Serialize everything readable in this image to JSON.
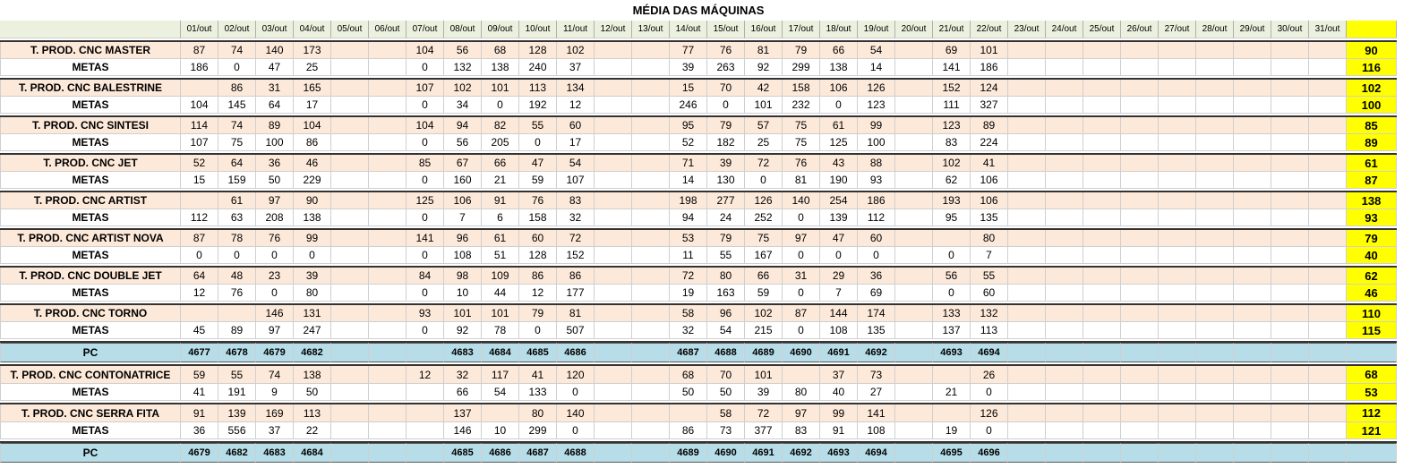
{
  "title": "MÉDIA DAS MÁQUINAS",
  "days": [
    "01/out",
    "02/out",
    "03/out",
    "04/out",
    "05/out",
    "06/out",
    "07/out",
    "08/out",
    "09/out",
    "10/out",
    "11/out",
    "12/out",
    "13/out",
    "14/out",
    "15/out",
    "16/out",
    "17/out",
    "18/out",
    "19/out",
    "20/out",
    "21/out",
    "22/out",
    "23/out",
    "24/out",
    "25/out",
    "26/out",
    "27/out",
    "28/out",
    "29/out",
    "30/out",
    "31/out"
  ],
  "colors": {
    "prod_row": "#fde9d9",
    "header": "#ebf1de",
    "pc_row": "#b7dee8",
    "total": "#ffff00"
  },
  "groups1": [
    {
      "prod_label": "T. PROD. CNC MASTER",
      "prod": [
        "87",
        "74",
        "140",
        "173",
        "",
        "",
        "104",
        "56",
        "68",
        "128",
        "102",
        "",
        "",
        "77",
        "76",
        "81",
        "79",
        "66",
        "54",
        "",
        "69",
        "101",
        "",
        "",
        "",
        "",
        "",
        "",
        "",
        "",
        ""
      ],
      "prod_total": "90",
      "metas_label": "METAS",
      "metas": [
        "186",
        "0",
        "47",
        "25",
        "",
        "",
        "0",
        "132",
        "138",
        "240",
        "37",
        "",
        "",
        "39",
        "263",
        "92",
        "299",
        "138",
        "14",
        "",
        "141",
        "186",
        "",
        "",
        "",
        "",
        "",
        "",
        "",
        "",
        ""
      ],
      "metas_total": "116"
    },
    {
      "prod_label": "T. PROD. CNC BALESTRINE",
      "prod": [
        "",
        "86",
        "31",
        "165",
        "",
        "",
        "107",
        "102",
        "101",
        "113",
        "134",
        "",
        "",
        "15",
        "70",
        "42",
        "158",
        "106",
        "126",
        "",
        "152",
        "124",
        "",
        "",
        "",
        "",
        "",
        "",
        "",
        "",
        ""
      ],
      "prod_total": "102",
      "metas_label": "METAS",
      "metas": [
        "104",
        "145",
        "64",
        "17",
        "",
        "",
        "0",
        "34",
        "0",
        "192",
        "12",
        "",
        "",
        "246",
        "0",
        "101",
        "232",
        "0",
        "123",
        "",
        "111",
        "327",
        "",
        "",
        "",
        "",
        "",
        "",
        "",
        "",
        ""
      ],
      "metas_total": "100"
    },
    {
      "prod_label": "T. PROD. CNC SINTESI",
      "prod": [
        "114",
        "74",
        "89",
        "104",
        "",
        "",
        "104",
        "94",
        "82",
        "55",
        "60",
        "",
        "",
        "95",
        "79",
        "57",
        "75",
        "61",
        "99",
        "",
        "123",
        "89",
        "",
        "",
        "",
        "",
        "",
        "",
        "",
        "",
        ""
      ],
      "prod_total": "85",
      "metas_label": "METAS",
      "metas": [
        "107",
        "75",
        "100",
        "86",
        "",
        "",
        "0",
        "56",
        "205",
        "0",
        "17",
        "",
        "",
        "52",
        "182",
        "25",
        "75",
        "125",
        "100",
        "",
        "83",
        "224",
        "",
        "",
        "",
        "",
        "",
        "",
        "",
        "",
        ""
      ],
      "metas_total": "89"
    },
    {
      "prod_label": "T. PROD. CNC JET",
      "prod": [
        "52",
        "64",
        "36",
        "46",
        "",
        "",
        "85",
        "67",
        "66",
        "47",
        "54",
        "",
        "",
        "71",
        "39",
        "72",
        "76",
        "43",
        "88",
        "",
        "102",
        "41",
        "",
        "",
        "",
        "",
        "",
        "",
        "",
        "",
        ""
      ],
      "prod_total": "61",
      "metas_label": "METAS",
      "metas": [
        "15",
        "159",
        "50",
        "229",
        "",
        "",
        "0",
        "160",
        "21",
        "59",
        "107",
        "",
        "",
        "14",
        "130",
        "0",
        "81",
        "190",
        "93",
        "",
        "62",
        "106",
        "",
        "",
        "",
        "",
        "",
        "",
        "",
        "",
        ""
      ],
      "metas_total": "87"
    },
    {
      "prod_label": "T. PROD. CNC ARTIST",
      "prod": [
        "",
        "61",
        "97",
        "90",
        "",
        "",
        "125",
        "106",
        "91",
        "76",
        "83",
        "",
        "",
        "198",
        "277",
        "126",
        "140",
        "254",
        "186",
        "",
        "193",
        "106",
        "",
        "",
        "",
        "",
        "",
        "",
        "",
        "",
        ""
      ],
      "prod_total": "138",
      "metas_label": "METAS",
      "metas": [
        "112",
        "63",
        "208",
        "138",
        "",
        "",
        "0",
        "7",
        "6",
        "158",
        "32",
        "",
        "",
        "94",
        "24",
        "252",
        "0",
        "139",
        "112",
        "",
        "95",
        "135",
        "",
        "",
        "",
        "",
        "",
        "",
        "",
        "",
        ""
      ],
      "metas_total": "93"
    },
    {
      "prod_label": "T. PROD. CNC ARTIST NOVA",
      "prod": [
        "87",
        "78",
        "76",
        "99",
        "",
        "",
        "141",
        "96",
        "61",
        "60",
        "72",
        "",
        "",
        "53",
        "79",
        "75",
        "97",
        "47",
        "60",
        "",
        "",
        "80",
        "",
        "",
        "",
        "",
        "",
        "",
        "",
        "",
        ""
      ],
      "prod_total": "79",
      "metas_label": "METAS",
      "metas": [
        "0",
        "0",
        "0",
        "0",
        "",
        "",
        "0",
        "108",
        "51",
        "128",
        "152",
        "",
        "",
        "11",
        "55",
        "167",
        "0",
        "0",
        "0",
        "",
        "0",
        "7",
        "",
        "",
        "",
        "",
        "",
        "",
        "",
        "",
        ""
      ],
      "metas_total": "40"
    },
    {
      "prod_label": "T. PROD. CNC DOUBLE JET",
      "prod": [
        "64",
        "48",
        "23",
        "39",
        "",
        "",
        "84",
        "98",
        "109",
        "86",
        "86",
        "",
        "",
        "72",
        "80",
        "66",
        "31",
        "29",
        "36",
        "",
        "56",
        "55",
        "",
        "",
        "",
        "",
        "",
        "",
        "",
        "",
        ""
      ],
      "prod_total": "62",
      "metas_label": "METAS",
      "metas": [
        "12",
        "76",
        "0",
        "80",
        "",
        "",
        "0",
        "10",
        "44",
        "12",
        "177",
        "",
        "",
        "19",
        "163",
        "59",
        "0",
        "7",
        "69",
        "",
        "0",
        "60",
        "",
        "",
        "",
        "",
        "",
        "",
        "",
        "",
        ""
      ],
      "metas_total": "46"
    },
    {
      "prod_label": "T. PROD. CNC TORNO",
      "prod": [
        "",
        "",
        "146",
        "131",
        "",
        "",
        "93",
        "101",
        "101",
        "79",
        "81",
        "",
        "",
        "58",
        "96",
        "102",
        "87",
        "144",
        "174",
        "",
        "133",
        "132",
        "",
        "",
        "",
        "",
        "",
        "",
        "",
        "",
        ""
      ],
      "prod_total": "110",
      "metas_label": "METAS",
      "metas": [
        "45",
        "89",
        "97",
        "247",
        "",
        "",
        "0",
        "92",
        "78",
        "0",
        "507",
        "",
        "",
        "32",
        "54",
        "215",
        "0",
        "108",
        "135",
        "",
        "137",
        "113",
        "",
        "",
        "",
        "",
        "",
        "",
        "",
        "",
        ""
      ],
      "metas_total": "115"
    }
  ],
  "pc1": {
    "label": "PC",
    "values": [
      "4677",
      "4678",
      "4679",
      "4682",
      "",
      "",
      "",
      "4683",
      "4684",
      "4685",
      "4686",
      "",
      "",
      "4687",
      "4688",
      "4689",
      "4690",
      "4691",
      "4692",
      "",
      "4693",
      "4694",
      "",
      "",
      "",
      "",
      "",
      "",
      "",
      "",
      ""
    ],
    "total": ""
  },
  "groups2": [
    {
      "prod_label": "T. PROD. CNC CONTONATRICE",
      "prod": [
        "59",
        "55",
        "74",
        "138",
        "",
        "",
        "12",
        "32",
        "117",
        "41",
        "120",
        "",
        "",
        "68",
        "70",
        "101",
        "",
        "37",
        "73",
        "",
        "",
        "26",
        "",
        "",
        "",
        "",
        "",
        "",
        "",
        "",
        ""
      ],
      "prod_total": "68",
      "metas_label": "METAS",
      "metas": [
        "41",
        "191",
        "9",
        "50",
        "",
        "",
        "",
        "66",
        "54",
        "133",
        "0",
        "",
        "",
        "50",
        "50",
        "39",
        "80",
        "40",
        "27",
        "",
        "21",
        "0",
        "",
        "",
        "",
        "",
        "",
        "",
        "",
        "",
        ""
      ],
      "metas_total": "53"
    },
    {
      "prod_label": "T. PROD. CNC SERRA FITA",
      "prod": [
        "91",
        "139",
        "169",
        "113",
        "",
        "",
        "",
        "137",
        "",
        "80",
        "140",
        "",
        "",
        "",
        "58",
        "72",
        "97",
        "99",
        "141",
        "",
        "",
        "126",
        "",
        "",
        "",
        "",
        "",
        "",
        "",
        "",
        ""
      ],
      "prod_total": "112",
      "metas_label": "METAS",
      "metas": [
        "36",
        "556",
        "37",
        "22",
        "",
        "",
        "",
        "146",
        "10",
        "299",
        "0",
        "",
        "",
        "86",
        "73",
        "377",
        "83",
        "91",
        "108",
        "",
        "19",
        "0",
        "",
        "",
        "",
        "",
        "",
        "",
        "",
        "",
        ""
      ],
      "metas_total": "121"
    }
  ],
  "pc2": {
    "label": "PC",
    "values": [
      "4679",
      "4682",
      "4683",
      "4684",
      "",
      "",
      "",
      "4685",
      "4686",
      "4687",
      "4688",
      "",
      "",
      "4689",
      "4690",
      "4691",
      "4692",
      "4693",
      "4694",
      "",
      "4695",
      "4696",
      "",
      "",
      "",
      "",
      "",
      "",
      "",
      "",
      ""
    ],
    "total": ""
  }
}
